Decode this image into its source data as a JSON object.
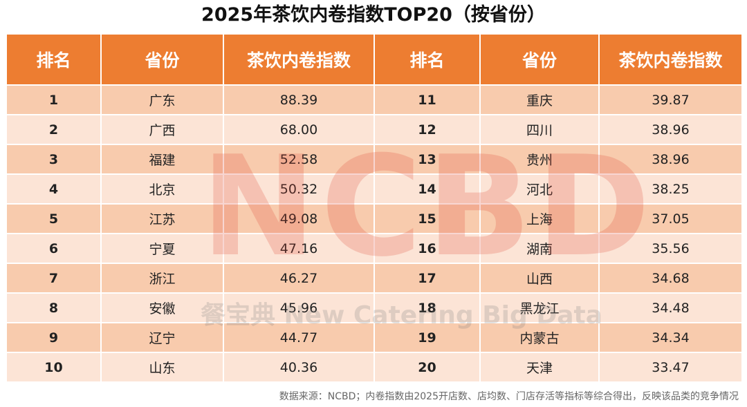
{
  "title": "2025年茶饮内卷指数TOP20（按省份）",
  "table": {
    "header": [
      "排名",
      "省份",
      "茶饮内卷指数",
      "排名",
      "省份",
      "茶饮内卷指数"
    ],
    "rows": [
      [
        "1",
        "广东",
        "88.39",
        "11",
        "重庆",
        "39.87"
      ],
      [
        "2",
        "广西",
        "68.00",
        "12",
        "四川",
        "38.96"
      ],
      [
        "3",
        "福建",
        "52.58",
        "13",
        "贵州",
        "38.96"
      ],
      [
        "4",
        "北京",
        "50.32",
        "14",
        "河北",
        "38.25"
      ],
      [
        "5",
        "江苏",
        "49.08",
        "15",
        "上海",
        "37.05"
      ],
      [
        "6",
        "宁夏",
        "47.16",
        "16",
        "湖南",
        "35.56"
      ],
      [
        "7",
        "浙江",
        "46.27",
        "17",
        "山西",
        "34.68"
      ],
      [
        "8",
        "安徽",
        "45.96",
        "18",
        "黑龙江",
        "34.48"
      ],
      [
        "9",
        "辽宁",
        "44.77",
        "19",
        "内蒙古",
        "34.34"
      ],
      [
        "10",
        "山东",
        "40.36",
        "20",
        "天津",
        "33.47"
      ]
    ]
  },
  "watermark": {
    "logo": "NCBD",
    "text": "餐宝典 New Catering Big Data"
  },
  "footnote": "数据来源：NCBD；内卷指数由2025开店数、店均数、门店存活等指标等综合得出，反映该品类的竞争情况"
}
